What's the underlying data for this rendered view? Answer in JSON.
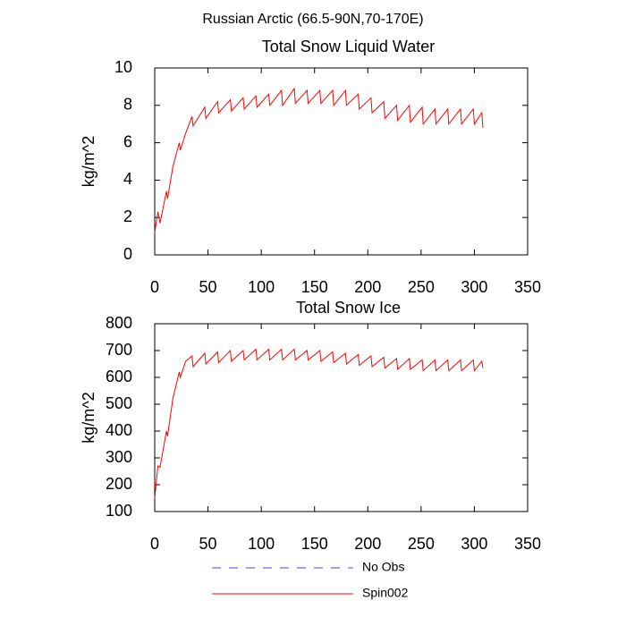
{
  "title": "Russian Arctic (66.5-90N,70-170E)",
  "legend": [
    {
      "name": "No Obs",
      "color": "#4444cc",
      "dashed": true
    },
    {
      "name": "Spin002",
      "color": "#ff0000",
      "dashed": false
    }
  ],
  "chart_data": [
    {
      "type": "line",
      "title": "Total Snow Liquid Water",
      "ylabel": "kg/m^2",
      "x": [
        0,
        3,
        5,
        11,
        12,
        17,
        23,
        24,
        29,
        35,
        36,
        47,
        48,
        59,
        60,
        71,
        72,
        83,
        84,
        95,
        96,
        107,
        108,
        119,
        120,
        131,
        132,
        143,
        144,
        155,
        156,
        167,
        168,
        179,
        180,
        191,
        192,
        203,
        204,
        215,
        216,
        227,
        228,
        239,
        240,
        251,
        252,
        263,
        264,
        275,
        276,
        287,
        288,
        299,
        300,
        307,
        308
      ],
      "series": [
        {
          "color": "#ff0000",
          "values": [
            1.2,
            2.3,
            1.7,
            3.4,
            3.0,
            4.7,
            6.0,
            5.6,
            6.5,
            7.4,
            6.9,
            7.9,
            7.3,
            8.2,
            7.6,
            8.3,
            7.7,
            8.4,
            7.8,
            8.5,
            7.9,
            8.6,
            8.0,
            8.8,
            8.0,
            8.9,
            8.1,
            8.8,
            8.1,
            8.8,
            8.1,
            8.8,
            8.0,
            8.8,
            8.0,
            8.6,
            7.8,
            8.4,
            7.6,
            8.2,
            7.3,
            8.0,
            7.2,
            8.0,
            7.1,
            7.9,
            7.0,
            7.8,
            7.0,
            7.8,
            7.0,
            7.8,
            7.0,
            7.8,
            7.0,
            7.6,
            6.8
          ]
        }
      ],
      "xlim": [
        0,
        350
      ],
      "xticks": [
        0,
        50,
        100,
        150,
        200,
        250,
        300,
        350
      ],
      "ylim": [
        0,
        10
      ],
      "yticks": [
        0,
        2,
        4,
        6,
        8,
        10
      ]
    },
    {
      "type": "line",
      "title": "Total Snow Ice",
      "ylabel": "kg/m^2",
      "x": [
        0,
        3,
        5,
        11,
        12,
        17,
        23,
        24,
        29,
        35,
        36,
        47,
        48,
        59,
        60,
        71,
        72,
        83,
        84,
        95,
        96,
        107,
        108,
        119,
        120,
        131,
        132,
        143,
        144,
        155,
        156,
        167,
        168,
        179,
        180,
        191,
        192,
        203,
        204,
        215,
        216,
        227,
        228,
        239,
        240,
        251,
        252,
        263,
        264,
        275,
        276,
        287,
        288,
        299,
        300,
        307,
        308
      ],
      "series": [
        {
          "color": "#ff0000",
          "values": [
            150,
            270,
            265,
            400,
            380,
            520,
            620,
            600,
            660,
            680,
            640,
            690,
            650,
            695,
            655,
            700,
            660,
            700,
            665,
            705,
            665,
            705,
            665,
            705,
            665,
            705,
            665,
            700,
            665,
            700,
            660,
            695,
            655,
            690,
            650,
            685,
            645,
            680,
            640,
            675,
            635,
            670,
            630,
            670,
            630,
            665,
            625,
            665,
            625,
            665,
            625,
            665,
            625,
            665,
            625,
            660,
            635
          ]
        }
      ],
      "xlim": [
        0,
        350
      ],
      "xticks": [
        0,
        50,
        100,
        150,
        200,
        250,
        300,
        350
      ],
      "ylim": [
        100,
        800
      ],
      "yticks": [
        100,
        200,
        300,
        400,
        500,
        600,
        700,
        800
      ]
    }
  ]
}
